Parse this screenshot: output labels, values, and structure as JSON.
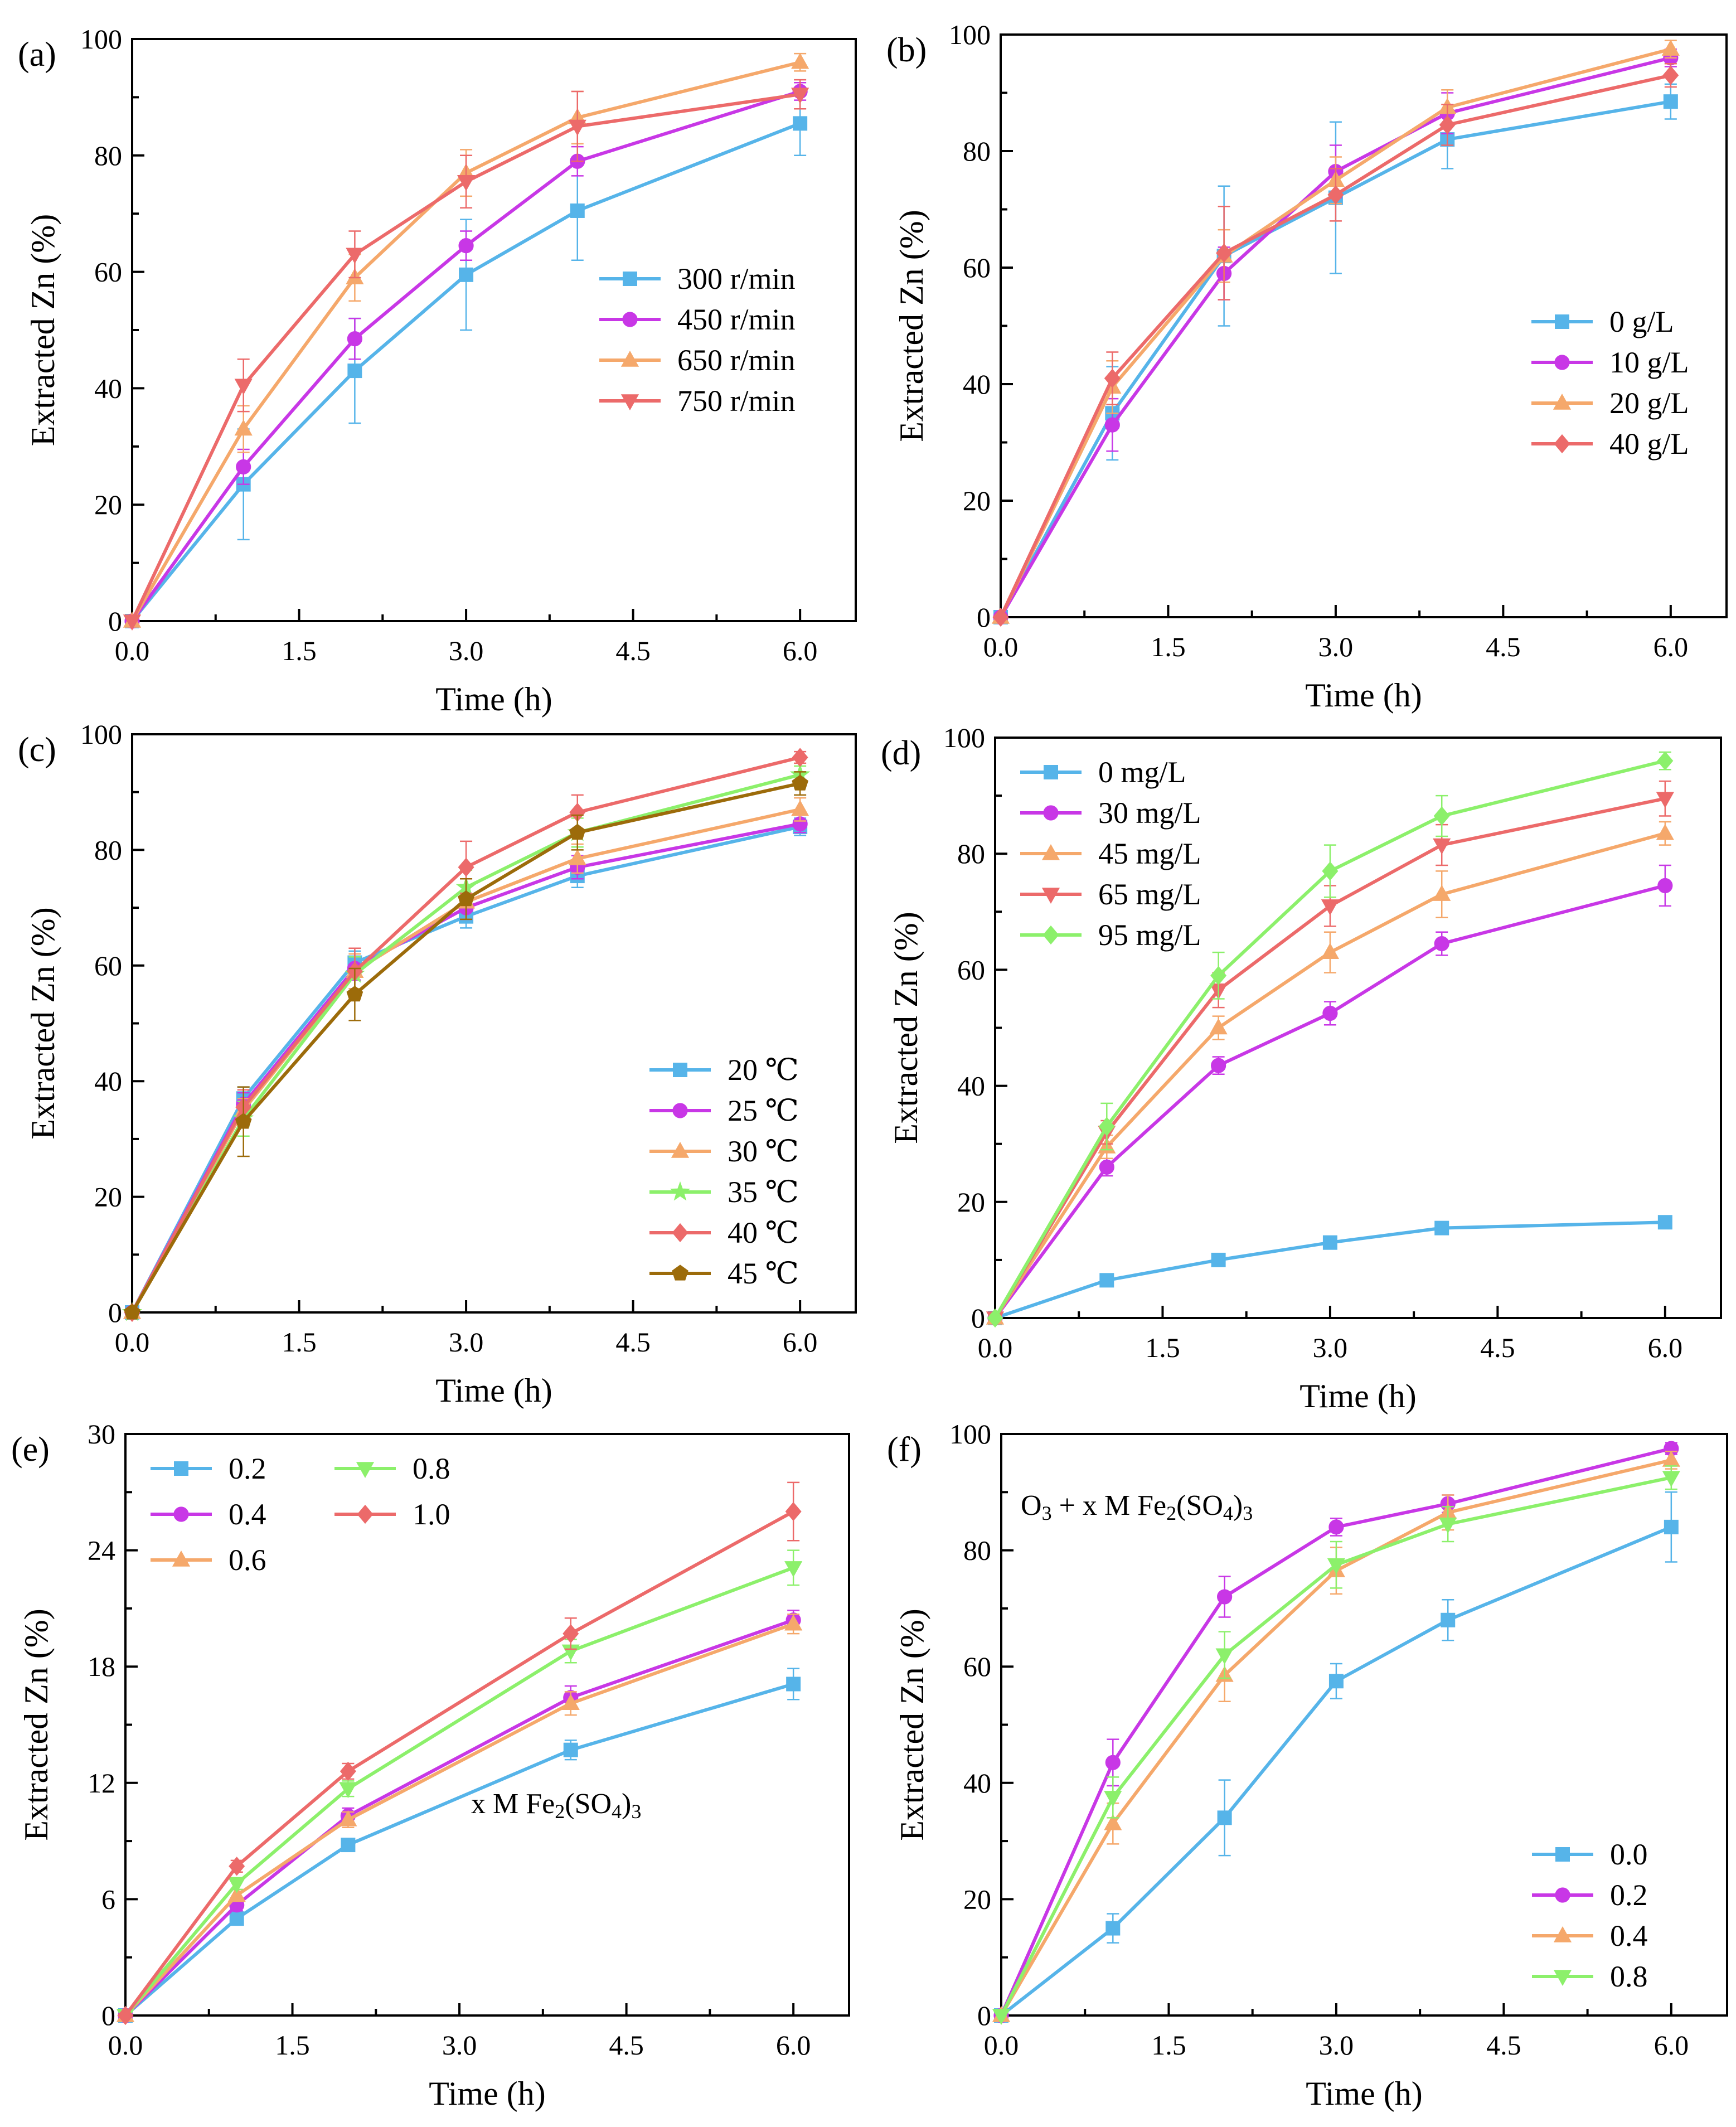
{
  "figure_title": "",
  "colors": {
    "blue": "#56b4e9",
    "magenta": "#c837e6",
    "orange": "#f5a86b",
    "salmon": "#ec6a6a",
    "green": "#8cf06b",
    "brown": "#9c6b0a"
  },
  "chart_data": [
    {
      "panel": "(a)",
      "type": "line",
      "xlabel": "Time (h)",
      "ylabel": "Extracted Zn (%)",
      "xlim": [
        0,
        6.5
      ],
      "ylim": [
        0,
        100
      ],
      "xticks": [
        "0.0",
        "1.5",
        "3.0",
        "4.5",
        "6.0"
      ],
      "xtick_values": [
        0,
        1.5,
        3,
        4.5,
        6
      ],
      "yticks": [
        "0",
        "20",
        "40",
        "60",
        "80",
        "100"
      ],
      "ytick_values": [
        0,
        20,
        40,
        60,
        80,
        100
      ],
      "legend_position": "middle-right",
      "legend_columns": 1,
      "x": [
        0,
        1,
        2,
        3,
        4,
        6
      ],
      "series": [
        {
          "name": "300 r/min",
          "color": "blue",
          "marker": "square",
          "values": [
            0,
            23.5,
            43,
            59.5,
            70.5,
            85.5
          ],
          "errors": [
            0,
            9.5,
            9,
            9.5,
            8.5,
            5.5
          ]
        },
        {
          "name": "450 r/min",
          "color": "magenta",
          "marker": "circle",
          "values": [
            0,
            26.5,
            48.5,
            64.5,
            79,
            91
          ],
          "errors": [
            0,
            3,
            3.5,
            2.5,
            2.5,
            1.5
          ]
        },
        {
          "name": "650 r/min",
          "color": "orange",
          "marker": "triangle-up",
          "values": [
            0,
            33,
            59,
            77,
            86.5,
            96
          ],
          "errors": [
            0,
            4,
            4,
            4,
            4.5,
            1.5
          ]
        },
        {
          "name": "750 r/min",
          "color": "salmon",
          "marker": "triangle-down",
          "values": [
            0,
            40.5,
            63,
            75.5,
            85,
            90.5
          ],
          "errors": [
            0,
            4.5,
            4,
            4.5,
            6,
            2.5
          ]
        }
      ]
    },
    {
      "panel": "(b)",
      "type": "line",
      "xlabel": "Time (h)",
      "ylabel": "Extracted Zn (%)",
      "xlim": [
        0,
        6.5
      ],
      "ylim": [
        0,
        100
      ],
      "xticks": [
        "0.0",
        "1.5",
        "3.0",
        "4.5",
        "6.0"
      ],
      "xtick_values": [
        0,
        1.5,
        3,
        4.5,
        6
      ],
      "yticks": [
        "0",
        "20",
        "40",
        "60",
        "80",
        "100"
      ],
      "ytick_values": [
        0,
        20,
        40,
        60,
        80,
        100
      ],
      "legend_position": "lower-right",
      "legend_columns": 1,
      "x": [
        0,
        1,
        2,
        3,
        4,
        6
      ],
      "series": [
        {
          "name": "0 g/L",
          "color": "blue",
          "marker": "square",
          "values": [
            0,
            35,
            62,
            72,
            82,
            88.5
          ],
          "errors": [
            0,
            8,
            12,
            13,
            5,
            3
          ]
        },
        {
          "name": "10 g/L",
          "color": "magenta",
          "marker": "circle",
          "values": [
            0,
            33,
            59,
            76.5,
            86.5,
            96
          ],
          "errors": [
            0,
            4.5,
            4.5,
            4.5,
            3.5,
            1.5
          ]
        },
        {
          "name": "20 g/L",
          "color": "orange",
          "marker": "triangle-up",
          "values": [
            0,
            39.5,
            62,
            75,
            87.5,
            97.5
          ],
          "errors": [
            0,
            4.5,
            4.5,
            4,
            3,
            1.5
          ]
        },
        {
          "name": "40 g/L",
          "color": "salmon",
          "marker": "diamond",
          "values": [
            0,
            41,
            62.5,
            72.5,
            84.5,
            93
          ],
          "errors": [
            0,
            4.5,
            8,
            4.5,
            3.5,
            2
          ]
        }
      ]
    },
    {
      "panel": "(c)",
      "type": "line",
      "xlabel": "Time (h)",
      "ylabel": "Extracted Zn (%)",
      "xlim": [
        0,
        6.5
      ],
      "ylim": [
        0,
        100
      ],
      "xticks": [
        "0.0",
        "1.5",
        "3.0",
        "4.5",
        "6.0"
      ],
      "xtick_values": [
        0,
        1.5,
        3,
        4.5,
        6
      ],
      "yticks": [
        "0",
        "20",
        "40",
        "60",
        "80",
        "100"
      ],
      "ytick_values": [
        0,
        20,
        40,
        60,
        80,
        100
      ],
      "legend_position": "lower-right",
      "legend_columns": 1,
      "x": [
        0,
        1,
        2,
        3,
        4,
        6
      ],
      "series": [
        {
          "name": "20 ℃",
          "color": "blue",
          "marker": "square",
          "values": [
            0,
            37,
            60.5,
            68.5,
            75.5,
            84
          ],
          "errors": [
            0,
            2,
            2,
            2,
            2,
            1.5
          ]
        },
        {
          "name": "25 ℃",
          "color": "magenta",
          "marker": "circle",
          "values": [
            0,
            36,
            59.5,
            70,
            77,
            84.5
          ],
          "errors": [
            0,
            2,
            2,
            2,
            2,
            1.5
          ]
        },
        {
          "name": "30 ℃",
          "color": "orange",
          "marker": "triangle-up",
          "values": [
            0,
            35,
            59,
            71,
            78.5,
            87
          ],
          "errors": [
            0,
            2,
            3,
            3,
            2.5,
            2
          ]
        },
        {
          "name": "35 ℃",
          "color": "green",
          "marker": "star",
          "values": [
            0,
            33.5,
            58.5,
            73.5,
            83,
            93
          ],
          "errors": [
            0,
            3,
            3,
            3,
            2.5,
            1.5
          ]
        },
        {
          "name": "40 ℃",
          "color": "salmon",
          "marker": "diamond",
          "values": [
            0,
            35.5,
            59,
            77,
            86.5,
            96
          ],
          "errors": [
            0,
            3,
            4,
            4.5,
            3,
            1
          ]
        },
        {
          "name": "45 ℃",
          "color": "brown",
          "marker": "pentagon",
          "values": [
            0,
            33,
            55,
            71.5,
            83,
            91.5
          ],
          "errors": [
            0,
            6,
            4.5,
            3.5,
            3,
            2
          ]
        }
      ]
    },
    {
      "panel": "(d)",
      "type": "line",
      "xlabel": "Time (h)",
      "ylabel": "Extracted Zn (%)",
      "xlim": [
        0,
        6.5
      ],
      "ylim": [
        0,
        100
      ],
      "xticks": [
        "0.0",
        "1.5",
        "3.0",
        "4.5",
        "6.0"
      ],
      "xtick_values": [
        0,
        1.5,
        3,
        4.5,
        6
      ],
      "yticks": [
        "0",
        "20",
        "40",
        "60",
        "80",
        "100"
      ],
      "ytick_values": [
        0,
        20,
        40,
        60,
        80,
        100
      ],
      "legend_position": "upper-left",
      "legend_columns": 1,
      "x": [
        0,
        1,
        2,
        3,
        4,
        6
      ],
      "series": [
        {
          "name": "0 mg/L",
          "color": "blue",
          "marker": "square",
          "values": [
            0,
            6.5,
            10,
            13,
            15.5,
            16.5
          ],
          "errors": [
            0,
            0.5,
            0.5,
            0.5,
            0.5,
            0.5
          ]
        },
        {
          "name": "30 mg/L",
          "color": "magenta",
          "marker": "circle",
          "values": [
            0,
            26,
            43.5,
            52.5,
            64.5,
            74.5
          ],
          "errors": [
            0,
            1.5,
            1.5,
            2,
            2,
            3.5
          ]
        },
        {
          "name": "45 mg/L",
          "color": "orange",
          "marker": "triangle-up",
          "values": [
            0,
            29.5,
            50,
            63,
            73,
            83.5
          ],
          "errors": [
            0,
            2,
            2,
            3.5,
            4,
            2
          ]
        },
        {
          "name": "65 mg/L",
          "color": "salmon",
          "marker": "triangle-down",
          "values": [
            0,
            32,
            56.5,
            71,
            81.5,
            89.5
          ],
          "errors": [
            0,
            2,
            3,
            3.5,
            3.5,
            3
          ]
        },
        {
          "name": "95 mg/L",
          "color": "green",
          "marker": "diamond",
          "values": [
            0,
            33,
            59,
            77,
            86.5,
            96
          ],
          "errors": [
            0,
            4,
            4,
            4.5,
            3.5,
            1.5
          ]
        }
      ]
    },
    {
      "panel": "(e)",
      "type": "line",
      "xlabel": "Time (h)",
      "ylabel": "Extracted Zn (%)",
      "xlim": [
        0,
        6.5
      ],
      "ylim": [
        0,
        30
      ],
      "xticks": [
        "0.0",
        "1.5",
        "3.0",
        "4.5",
        "6.0"
      ],
      "xtick_values": [
        0,
        1.5,
        3,
        4.5,
        6
      ],
      "yticks": [
        "0",
        "6",
        "12",
        "18",
        "24",
        "30"
      ],
      "ytick_values": [
        0,
        6,
        12,
        18,
        24,
        30
      ],
      "legend_position": "upper-left",
      "legend_columns": 2,
      "annotation": {
        "text_main": "x M Fe",
        "sub1": "2",
        "text_mid": "(SO",
        "sub2": "4",
        "text_end": ")",
        "sub3": "3"
      },
      "x": [
        0,
        1,
        2,
        4,
        6
      ],
      "series": [
        {
          "name": "0.2",
          "color": "blue",
          "marker": "square",
          "values": [
            0,
            5,
            8.8,
            13.7,
            17.1
          ],
          "errors": [
            0,
            0.3,
            0.3,
            0.5,
            0.8
          ]
        },
        {
          "name": "0.4",
          "color": "magenta",
          "marker": "circle",
          "values": [
            0,
            5.7,
            10.3,
            16.4,
            20.4
          ],
          "errors": [
            0,
            0.3,
            0.4,
            0.6,
            0.5
          ]
        },
        {
          "name": "0.6",
          "color": "orange",
          "marker": "triangle-up",
          "values": [
            0,
            6.2,
            10.1,
            16.1,
            20.2
          ],
          "errors": [
            0,
            0.3,
            0.4,
            0.6,
            0.5
          ]
        },
        {
          "name": "0.8",
          "color": "green",
          "marker": "triangle-down",
          "values": [
            0,
            6.8,
            11.7,
            18.8,
            23.1
          ],
          "errors": [
            0,
            0.3,
            0.4,
            0.6,
            0.9
          ]
        },
        {
          "name": "1.0",
          "color": "salmon",
          "marker": "diamond",
          "values": [
            0,
            7.7,
            12.6,
            19.7,
            26
          ],
          "errors": [
            0,
            0.3,
            0.4,
            0.8,
            1.5
          ]
        }
      ]
    },
    {
      "panel": "(f)",
      "type": "line",
      "xlabel": "Time (h)",
      "ylabel": "Extracted Zn (%)",
      "xlim": [
        0,
        6.5
      ],
      "ylim": [
        0,
        100
      ],
      "xticks": [
        "0.0",
        "1.5",
        "3.0",
        "4.5",
        "6.0"
      ],
      "xtick_values": [
        0,
        1.5,
        3,
        4.5,
        6
      ],
      "yticks": [
        "0",
        "20",
        "40",
        "60",
        "80",
        "100"
      ],
      "ytick_values": [
        0,
        20,
        40,
        60,
        80,
        100
      ],
      "legend_position": "lower-right",
      "legend_columns": 1,
      "annotation": {
        "text_main": "O",
        "sub1": "3",
        "text_mid": " + x M Fe",
        "sub2": "2",
        "text_mid2": "(SO",
        "sub3": "4",
        "text_end": ")",
        "sub4": "3"
      },
      "x": [
        0,
        1,
        2,
        3,
        4,
        6
      ],
      "series": [
        {
          "name": "0.0",
          "color": "blue",
          "marker": "square",
          "values": [
            0,
            15,
            34,
            57.5,
            68,
            84
          ],
          "errors": [
            0,
            2.5,
            6.5,
            3,
            3.5,
            6
          ]
        },
        {
          "name": "0.2",
          "color": "magenta",
          "marker": "circle",
          "values": [
            0,
            43.5,
            72,
            84,
            88,
            97.5
          ],
          "errors": [
            0,
            4,
            3.5,
            1.5,
            1.5,
            1
          ]
        },
        {
          "name": "0.4",
          "color": "orange",
          "marker": "triangle-up",
          "values": [
            0,
            33,
            58.5,
            76.5,
            86.5,
            95.5
          ],
          "errors": [
            0,
            3.5,
            4.5,
            4,
            3,
            1.5
          ]
        },
        {
          "name": "0.8",
          "color": "green",
          "marker": "triangle-down",
          "values": [
            0,
            37.5,
            62,
            77.5,
            84.5,
            92.5
          ],
          "errors": [
            0,
            3.5,
            4,
            4,
            3,
            2
          ]
        }
      ]
    }
  ]
}
